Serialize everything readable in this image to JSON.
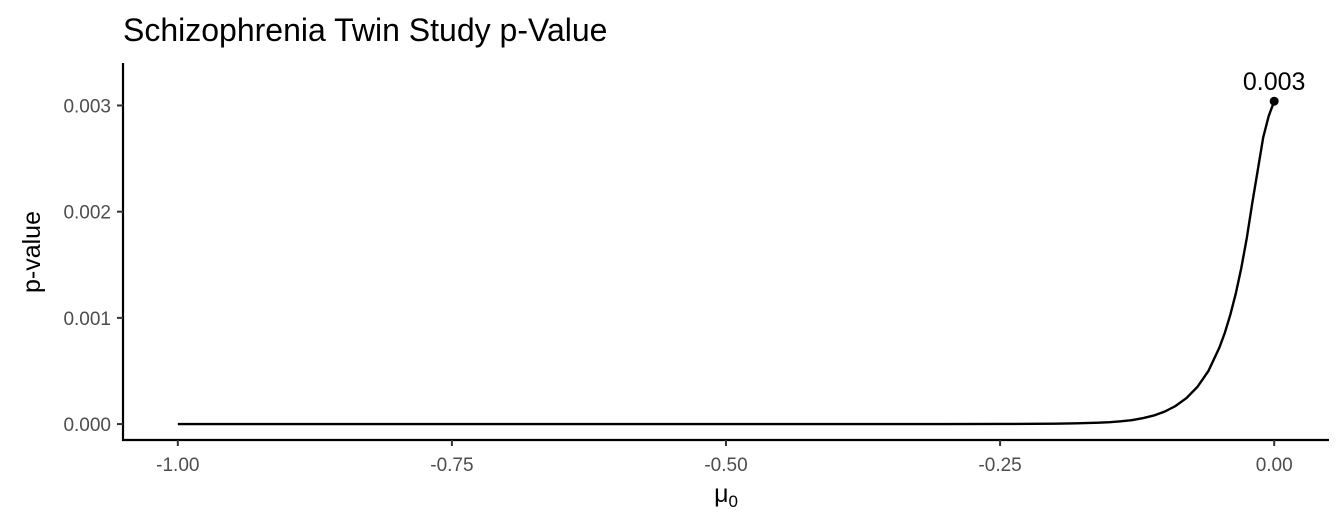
{
  "chart_data": {
    "type": "line",
    "title": "Schizophrenia Twin Study p-Value",
    "xlabel_base": "μ",
    "xlabel_subscript": "0",
    "ylabel": "p-value",
    "xlim": [
      -1.05,
      0.05
    ],
    "ylim": [
      -0.00015,
      0.0034
    ],
    "x_ticks": [
      -1.0,
      -0.75,
      -0.5,
      -0.25,
      0.0
    ],
    "x_tick_labels": [
      "-1.00",
      "-0.75",
      "-0.50",
      "-0.25",
      "0.00"
    ],
    "y_ticks": [
      0.0,
      0.001,
      0.002,
      0.003
    ],
    "y_tick_labels": [
      "0.000",
      "0.001",
      "0.002",
      "0.003"
    ],
    "grid": false,
    "series": [
      {
        "x": [
          -1.0,
          -0.75,
          -0.5,
          -0.3,
          -0.25,
          -0.22,
          -0.2,
          -0.18,
          -0.16,
          -0.15,
          -0.14,
          -0.13,
          -0.12,
          -0.11,
          -0.1,
          -0.09,
          -0.08,
          -0.07,
          -0.06,
          -0.05,
          -0.045,
          -0.04,
          -0.035,
          -0.03,
          -0.025,
          -0.02,
          -0.015,
          -0.01,
          -0.005,
          0.0
        ],
        "y": [
          0.0,
          0.0,
          0.0,
          5e-07,
          1e-06,
          2e-06,
          4e-06,
          7e-06,
          1.3e-05,
          1.8e-05,
          2.6e-05,
          3.7e-05,
          5.5e-05,
          8e-05,
          0.000117,
          0.00017,
          0.000245,
          0.00035,
          0.0005,
          0.00072,
          0.00086,
          0.00103,
          0.00123,
          0.00147,
          0.00175,
          0.00208,
          0.00239,
          0.0027,
          0.0029,
          0.00304
        ]
      }
    ],
    "highlight_point": {
      "x": 0.0,
      "y": 0.00304,
      "label": "0.003"
    }
  }
}
